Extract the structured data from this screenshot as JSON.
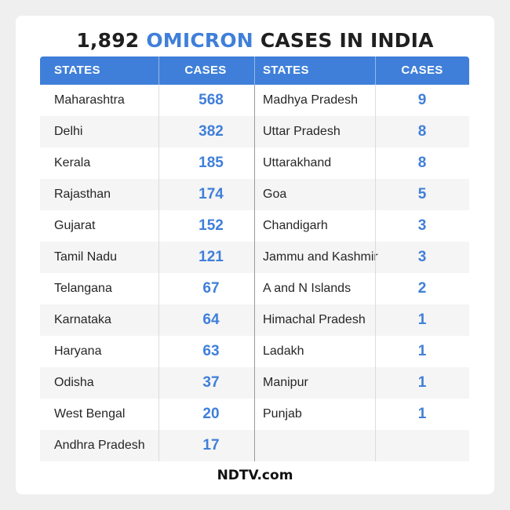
{
  "title": {
    "number": "1,892",
    "highlight": "OMICRON",
    "rest": "CASES IN INDIA"
  },
  "headers": {
    "states_left": "STATES",
    "cases_left": "CASES",
    "states_right": "STATES",
    "cases_right": "CASES"
  },
  "footer": {
    "source": "NDTV.com"
  },
  "colors": {
    "accent": "#3f7fd9",
    "text": "#262626",
    "row_shade": "#f5f5f6"
  },
  "chart_data": {
    "type": "table",
    "title": "1,892 OMICRON CASES IN INDIA",
    "columns": [
      "STATES",
      "CASES",
      "STATES",
      "CASES"
    ],
    "left": [
      {
        "state": "Maharashtra",
        "cases": 568
      },
      {
        "state": "Delhi",
        "cases": 382
      },
      {
        "state": "Kerala",
        "cases": 185
      },
      {
        "state": "Rajasthan",
        "cases": 174
      },
      {
        "state": "Gujarat",
        "cases": 152
      },
      {
        "state": "Tamil Nadu",
        "cases": 121
      },
      {
        "state": "Telangana",
        "cases": 67
      },
      {
        "state": "Karnataka",
        "cases": 64
      },
      {
        "state": "Haryana",
        "cases": 63
      },
      {
        "state": "Odisha",
        "cases": 37
      },
      {
        "state": "West Bengal",
        "cases": 20
      },
      {
        "state": "Andhra Pradesh",
        "cases": 17
      }
    ],
    "right": [
      {
        "state": "Madhya Pradesh",
        "cases": 9
      },
      {
        "state": "Uttar Pradesh",
        "cases": 8
      },
      {
        "state": "Uttarakhand",
        "cases": 8
      },
      {
        "state": "Goa",
        "cases": 5
      },
      {
        "state": "Chandigarh",
        "cases": 3
      },
      {
        "state": "Jammu and Kashmir",
        "cases": 3
      },
      {
        "state": "A and N Islands",
        "cases": 2
      },
      {
        "state": "Himachal Pradesh",
        "cases": 1
      },
      {
        "state": "Ladakh",
        "cases": 1
      },
      {
        "state": "Manipur",
        "cases": 1
      },
      {
        "state": "Punjab",
        "cases": 1
      }
    ]
  }
}
